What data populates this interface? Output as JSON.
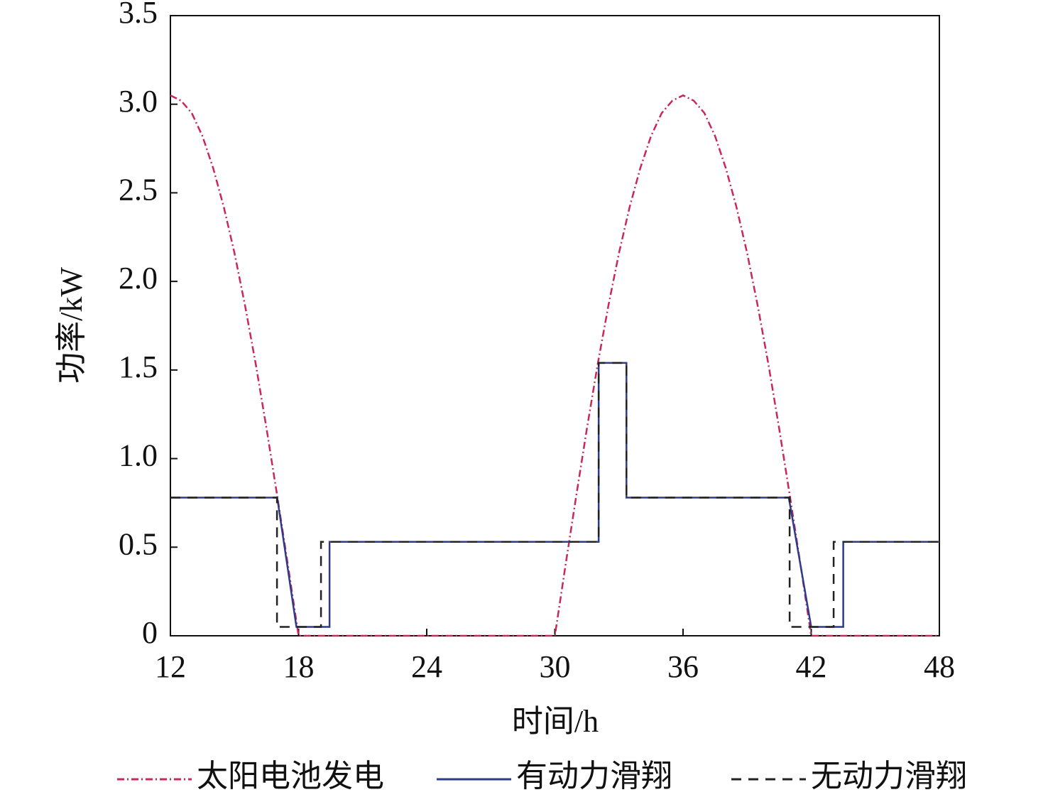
{
  "chart_data": {
    "type": "line",
    "xlabel": "时间/h",
    "ylabel": "功率/kW",
    "xlim": [
      12,
      48
    ],
    "xticks": [
      12,
      18,
      24,
      30,
      36,
      42,
      48
    ],
    "ylim": [
      0,
      3.5
    ],
    "yticks": [
      0,
      0.5,
      {
        "value": 1,
        "label": "1.0"
      },
      1.5,
      {
        "value": 2,
        "label": "2.0"
      },
      2.5,
      {
        "value": 3,
        "label": "3.0"
      },
      3.5
    ],
    "legend": "bottom",
    "series": [
      {
        "name": "太阳电池发电",
        "color": "#c8285a",
        "style": "dashdot",
        "x": [
          12,
          12.5,
          13,
          13.5,
          14,
          14.5,
          15,
          15.5,
          16,
          16.5,
          17,
          17.5,
          18,
          30,
          30.5,
          31,
          31.5,
          32,
          32.5,
          33,
          33.5,
          34,
          34.5,
          35,
          35.5,
          36,
          36.5,
          37,
          37.5,
          38,
          38.5,
          39,
          39.5,
          40,
          40.5,
          41,
          41.5,
          42,
          48
        ],
        "values": [
          3.05,
          3.02,
          2.95,
          2.82,
          2.64,
          2.42,
          2.16,
          1.86,
          1.53,
          1.17,
          0.79,
          0.4,
          0,
          0,
          0.4,
          0.79,
          1.17,
          1.53,
          1.86,
          2.16,
          2.42,
          2.64,
          2.82,
          2.95,
          3.02,
          3.05,
          3.02,
          2.95,
          2.82,
          2.64,
          2.42,
          2.16,
          1.86,
          1.53,
          1.17,
          0.79,
          0.4,
          0,
          0
        ]
      },
      {
        "name": "有动力滑翔",
        "color": "#2e3a8c",
        "style": "solid",
        "x": [
          12,
          17,
          17.9,
          19.45,
          19.45,
          32.05,
          32.05,
          33.35,
          33.35,
          40.95,
          42,
          43.5,
          43.5,
          48
        ],
        "values": [
          0.78,
          0.78,
          0.05,
          0.05,
          0.53,
          0.53,
          1.54,
          1.54,
          0.78,
          0.78,
          0.05,
          0.05,
          0.53,
          0.53
        ]
      },
      {
        "name": "无动力滑翔",
        "color": "#222222",
        "style": "dashed",
        "x": [
          12,
          16.99,
          16.99,
          19.05,
          19.05,
          32.05,
          32.05,
          33.35,
          33.35,
          40.99,
          40.99,
          43.05,
          43.05,
          48
        ],
        "values": [
          0.78,
          0.78,
          0.05,
          0.05,
          0.53,
          0.53,
          1.54,
          1.54,
          0.78,
          0.78,
          0.05,
          0.05,
          0.53,
          0.53
        ]
      }
    ]
  }
}
